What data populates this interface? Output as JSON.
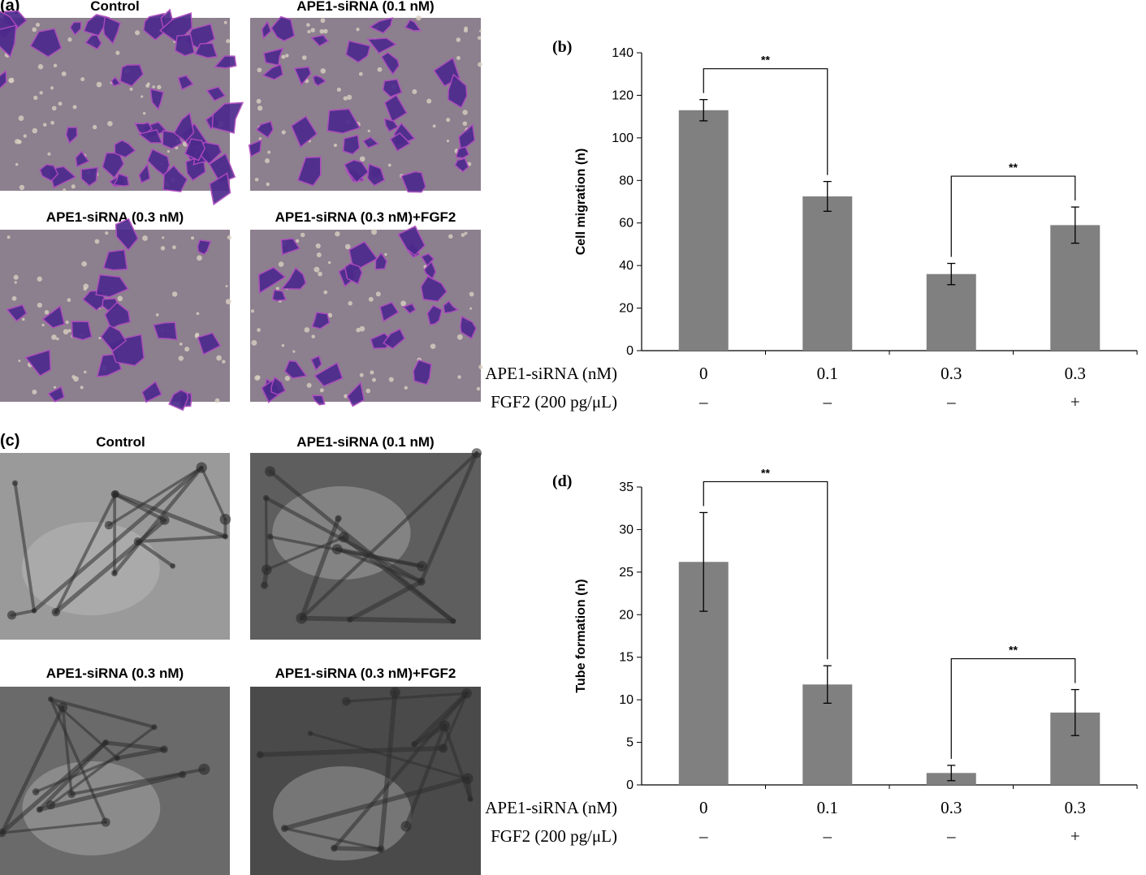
{
  "panel_a": {
    "letter": "(a)",
    "images": [
      {
        "label": "Control"
      },
      {
        "label": "APE1-siRNA (0.1 nM)"
      },
      {
        "label": "APE1-siRNA (0.3 nM)"
      },
      {
        "label": "APE1-siRNA (0.3 nM)+FGF2"
      }
    ]
  },
  "panel_c": {
    "letter": "(c)",
    "images": [
      {
        "label": "Control"
      },
      {
        "label": "APE1-siRNA (0.1 nM)"
      },
      {
        "label": "APE1-siRNA (0.3 nM)"
      },
      {
        "label": "APE1-siRNA (0.3 nM)+FGF2"
      }
    ]
  },
  "chart_data": [
    {
      "panel": "(b)",
      "type": "bar",
      "ylabel": "Cell migration (n)",
      "ylim": [
        0,
        140
      ],
      "yticks": [
        0,
        20,
        40,
        60,
        80,
        100,
        120,
        140
      ],
      "categories": [
        "0",
        "0.1",
        "0.3",
        "0.3"
      ],
      "values": [
        113,
        72.5,
        36,
        59
      ],
      "errors": [
        5,
        7,
        5,
        8.5
      ],
      "row_labels": {
        "siRNA": "APE1-siRNA (nM)",
        "fgf2": "FGF2 (200 pg/μL)"
      },
      "fgf2_values": [
        "–",
        "–",
        "–",
        "+"
      ],
      "significance": [
        {
          "from": 0,
          "to": 1,
          "label": "**"
        },
        {
          "from": 2,
          "to": 3,
          "label": "**"
        }
      ],
      "bar_color": "#808080"
    },
    {
      "panel": "(d)",
      "type": "bar",
      "ylabel": "Tube formation (n)",
      "ylim": [
        0,
        35
      ],
      "yticks": [
        0,
        5,
        10,
        15,
        20,
        25,
        30,
        35
      ],
      "categories": [
        "0",
        "0.1",
        "0.3",
        "0.3"
      ],
      "values": [
        26.2,
        11.8,
        1.4,
        8.5
      ],
      "errors": [
        5.8,
        2.2,
        0.9,
        2.7
      ],
      "row_labels": {
        "siRNA": "APE1-siRNA (nM)",
        "fgf2": "FGF2 (200 pg/μL)"
      },
      "fgf2_values": [
        "–",
        "–",
        "–",
        "+"
      ],
      "significance": [
        {
          "from": 0,
          "to": 1,
          "label": "**"
        },
        {
          "from": 2,
          "to": 3,
          "label": "**"
        }
      ],
      "bar_color": "#808080"
    }
  ]
}
